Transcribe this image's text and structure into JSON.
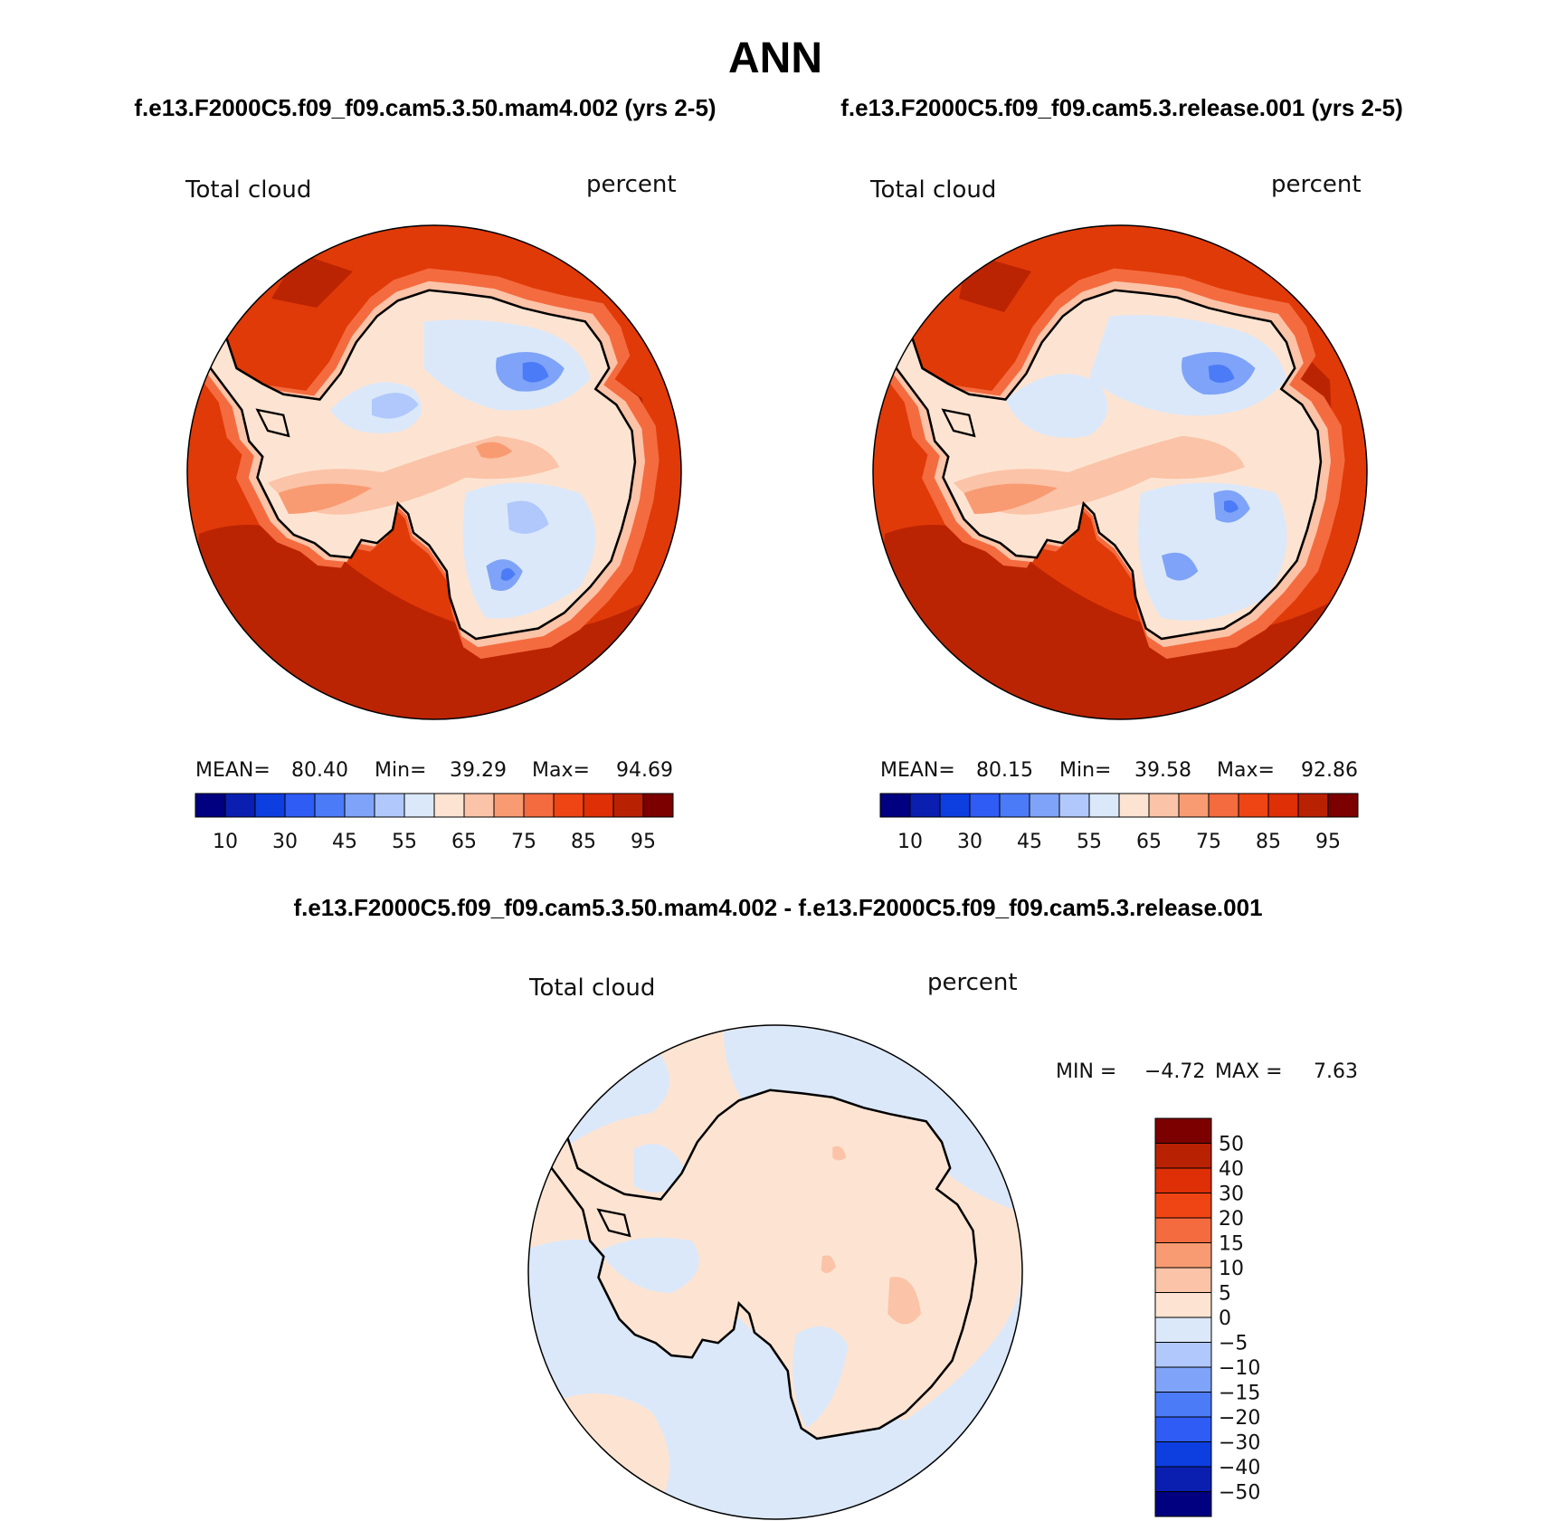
{
  "page_title": "ANN",
  "panels": [
    {
      "case_title": "f.e13.F2000C5.f09_f09.cam5.3.50.mam4.002 (yrs 2-5)",
      "variable": "Total cloud",
      "units": "percent",
      "stats": {
        "mean_label": "MEAN=",
        "mean": "80.40",
        "min_label": "Min=",
        "min": "39.29",
        "max_label": "Max=",
        "max": "94.69"
      }
    },
    {
      "case_title": "f.e13.F2000C5.f09_f09.cam5.3.release.001 (yrs 2-5)",
      "variable": "Total cloud",
      "units": "percent",
      "stats": {
        "mean_label": "MEAN=",
        "mean": "80.15",
        "min_label": "Min=",
        "min": "39.58",
        "max_label": "Max=",
        "max": "92.86"
      }
    }
  ],
  "diff_panel": {
    "title": "f.e13.F2000C5.f09_f09.cam5.3.50.mam4.002 - f.e13.F2000C5.f09_f09.cam5.3.release.001",
    "variable": "Total cloud",
    "units": "percent",
    "stats": {
      "min_label": "MIN =",
      "min": "−4.72",
      "max_label": "MAX =",
      "max": "7.63"
    }
  },
  "abs_colorbar": {
    "colors": [
      "#000080",
      "#0a1fb0",
      "#0d3ee0",
      "#2e5cf5",
      "#4c7bf7",
      "#7ea3f8",
      "#b0c8fb",
      "#dbe8fa",
      "#fde4d2",
      "#fbc3a7",
      "#f89b72",
      "#f46b3f",
      "#ef4414",
      "#de2f06",
      "#b92103",
      "#7d0000"
    ],
    "labels": [
      "10",
      "30",
      "45",
      "55",
      "65",
      "75",
      "85",
      "95"
    ]
  },
  "diff_colorbar": {
    "colors": [
      "#000080",
      "#0a1fb0",
      "#0d3ee0",
      "#2e5cf5",
      "#4c7bf7",
      "#7ea3f8",
      "#b0c8fb",
      "#dbe8fa",
      "#fde4d2",
      "#fbc3a7",
      "#f89b72",
      "#f46b3f",
      "#ef4414",
      "#de2f06",
      "#b92103",
      "#7d0000"
    ],
    "labels": [
      "50",
      "40",
      "30",
      "20",
      "15",
      "10",
      "5",
      "0",
      "−5",
      "−10",
      "−15",
      "−20",
      "−30",
      "−40",
      "−50"
    ]
  }
}
